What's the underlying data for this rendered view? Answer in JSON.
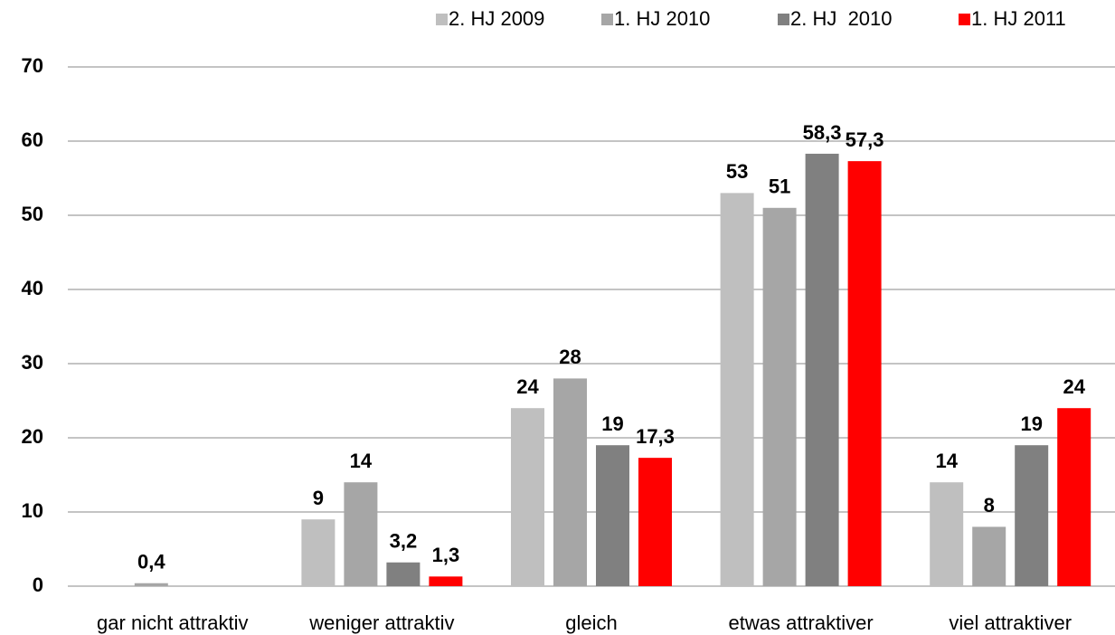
{
  "chart_data": {
    "type": "bar",
    "categories": [
      "gar nicht attraktiv",
      "weniger attraktiv",
      "gleich",
      "etwas attraktiver",
      "viel attraktiver"
    ],
    "series": [
      {
        "name": "2. HJ 2009",
        "color": "#bfbfbf",
        "values": [
          null,
          9,
          24,
          53,
          14
        ],
        "value_labels": [
          null,
          "9",
          "24",
          "53",
          "14"
        ]
      },
      {
        "name": "1. HJ 2010",
        "color": "#a6a6a6",
        "values": [
          0.4,
          14,
          28,
          51,
          8
        ],
        "value_labels": [
          "0,4",
          "14",
          "28",
          "51",
          "8"
        ]
      },
      {
        "name": "2. HJ  2010",
        "color": "#808080",
        "values": [
          null,
          3.2,
          19,
          58.3,
          19
        ],
        "value_labels": [
          null,
          "3,2",
          "19",
          "58,3",
          "19"
        ]
      },
      {
        "name": "1. HJ 2011",
        "color": "#ff0000",
        "values": [
          null,
          1.3,
          17.3,
          57.3,
          24
        ],
        "value_labels": [
          null,
          "1,3",
          "17,3",
          "57,3",
          "24"
        ]
      }
    ],
    "ylim": [
      0,
      70
    ],
    "yticks": [
      0,
      10,
      20,
      30,
      40,
      50,
      60,
      70
    ],
    "grid": true,
    "legend": "top-right"
  }
}
